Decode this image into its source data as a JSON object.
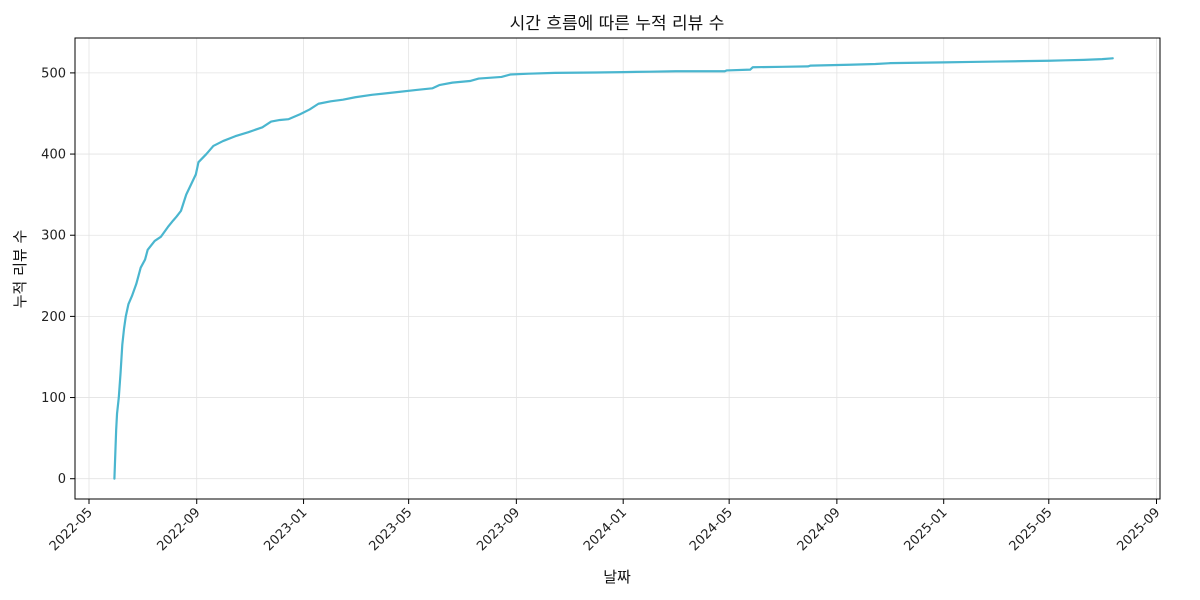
{
  "chart_data": {
    "type": "line",
    "title": "시간 흐름에 따른 누적 리뷰 수",
    "xlabel": "날짜",
    "ylabel": "누적 리뷰 수",
    "x_axis_type": "date",
    "xlim": [
      "2022-04-15",
      "2025-09-05"
    ],
    "ylim": [
      -25,
      543
    ],
    "grid": true,
    "x_ticks": [
      "2022-05",
      "2022-09",
      "2023-01",
      "2023-05",
      "2023-09",
      "2024-01",
      "2024-05",
      "2024-09",
      "2025-01",
      "2025-05",
      "2025-09"
    ],
    "y_ticks": [
      0,
      100,
      200,
      300,
      400,
      500
    ],
    "series": [
      {
        "color": "#4AB6CF",
        "x": [
          "2022-05-30",
          "2022-05-31",
          "2022-06-01",
          "2022-06-02",
          "2022-06-04",
          "2022-06-06",
          "2022-06-08",
          "2022-06-10",
          "2022-06-12",
          "2022-06-15",
          "2022-06-19",
          "2022-06-24",
          "2022-06-29",
          "2022-07-04",
          "2022-07-07",
          "2022-07-15",
          "2022-07-22",
          "2022-07-30",
          "2022-08-05",
          "2022-08-09",
          "2022-08-14",
          "2022-08-20",
          "2022-08-31",
          "2022-09-03",
          "2022-09-12",
          "2022-09-20",
          "2022-10-01",
          "2022-10-15",
          "2022-10-30",
          "2022-11-15",
          "2022-11-25",
          "2022-12-05",
          "2022-12-15",
          "2022-12-28",
          "2023-01-08",
          "2023-01-18",
          "2023-02-01",
          "2023-02-15",
          "2023-03-01",
          "2023-03-20",
          "2023-04-15",
          "2023-05-10",
          "2023-05-28",
          "2023-06-05",
          "2023-06-20",
          "2023-07-10",
          "2023-07-20",
          "2023-08-15",
          "2023-08-25",
          "2023-09-15",
          "2023-10-15",
          "2023-12-01",
          "2024-01-01",
          "2024-02-01",
          "2024-03-01",
          "2024-04-26",
          "2024-04-28",
          "2024-05-25",
          "2024-05-28",
          "2024-07-01",
          "2024-07-30",
          "2024-08-02",
          "2024-09-15",
          "2024-10-15",
          "2024-11-01",
          "2024-12-01",
          "2025-01-01",
          "2025-02-01",
          "2025-03-01",
          "2025-04-01",
          "2025-05-01",
          "2025-05-20",
          "2025-06-10",
          "2025-07-01",
          "2025-07-13"
        ],
        "y": [
          0,
          30,
          60,
          80,
          100,
          130,
          165,
          185,
          200,
          215,
          225,
          240,
          260,
          270,
          282,
          293,
          298,
          310,
          318,
          323,
          330,
          350,
          375,
          390,
          400,
          410,
          416,
          422,
          427,
          433,
          440,
          442,
          443,
          449,
          455,
          462,
          465,
          467,
          470,
          473,
          476,
          479,
          481,
          485,
          488,
          490,
          493,
          495,
          498,
          499,
          500,
          500.5,
          501,
          501.5,
          502,
          502,
          503,
          504,
          507,
          507.5,
          508,
          509,
          510,
          511,
          512,
          512.5,
          513,
          513.5,
          514,
          514.5,
          515,
          515.5,
          516,
          517,
          518
        ]
      }
    ]
  }
}
